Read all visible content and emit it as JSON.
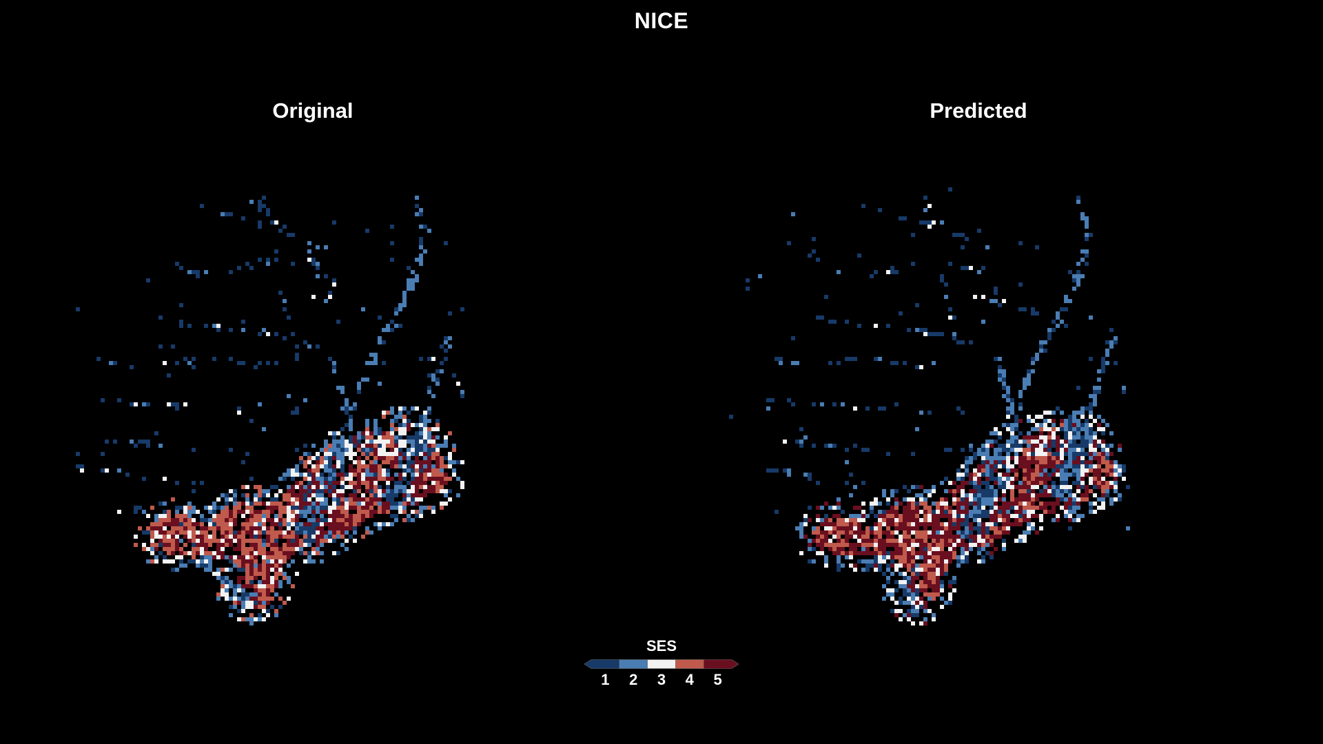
{
  "title": "NICE",
  "panels": {
    "original": {
      "title": "Original"
    },
    "predicted": {
      "title": "Predicted"
    }
  },
  "legend": {
    "title": "SES",
    "classes": [
      {
        "label": "1",
        "color": "#173a68"
      },
      {
        "label": "2",
        "color": "#4a7db3"
      },
      {
        "label": "3",
        "color": "#f2f2f2"
      },
      {
        "label": "4",
        "color": "#c05a4c"
      },
      {
        "label": "5",
        "color": "#6a0f1f"
      }
    ]
  },
  "colors": {
    "background": "#000000",
    "text": "#ffffff"
  }
}
